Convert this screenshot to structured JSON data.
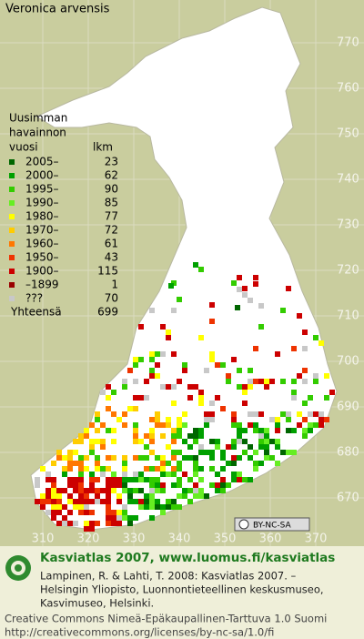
{
  "title": "Veronica arvensis",
  "legend": {
    "header_lines": [
      "Uusimman",
      "havainnon",
      "vuosi"
    ],
    "count_header": "lkm",
    "entries": [
      {
        "label": "2005–",
        "count": 23,
        "color": "#006600"
      },
      {
        "label": "2000–",
        "count": 62,
        "color": "#00a000"
      },
      {
        "label": "1995–",
        "count": 90,
        "color": "#33cc00"
      },
      {
        "label": "1990–",
        "count": 85,
        "color": "#66ee22"
      },
      {
        "label": "1980–",
        "count": 77,
        "color": "#ffff00"
      },
      {
        "label": "1970–",
        "count": 72,
        "color": "#ffcc00"
      },
      {
        "label": "1960–",
        "count": 61,
        "color": "#ff7700"
      },
      {
        "label": "1950–",
        "count": 43,
        "color": "#ee3300"
      },
      {
        "label": "1900–",
        "count": 115,
        "color": "#cc0000"
      },
      {
        "label": "–1899",
        "count": 1,
        "color": "#990000"
      },
      {
        "label": "???",
        "count": 70,
        "color": "#c8c8c8"
      }
    ],
    "total_label": "Yhteensä",
    "total": 699
  },
  "axes": {
    "yticks": [
      770,
      760,
      750,
      740,
      730,
      720,
      710,
      700,
      690,
      680,
      670
    ],
    "xticks": [
      310,
      320,
      330,
      340,
      350,
      360,
      370
    ]
  },
  "license_badge": "BY-NC-SA",
  "footer": {
    "brand": "Kasviatlas 2007, www.luomus.fi/kasviatlas",
    "citation": [
      "Lampinen, R. & Lahti, T. 2008: Kasviatlas 2007. –",
      "Helsingin Yliopisto, Luonnontieteellinen keskusmuseo,",
      "Kasvimuseo, Helsinki."
    ],
    "license": [
      "Creative Commons Nimeä-Epäkaupallinen-Tarttuva 1.0 Suomi",
      "http://creativecommons.org/licenses/by-nc-sa/1.0/fi"
    ]
  }
}
